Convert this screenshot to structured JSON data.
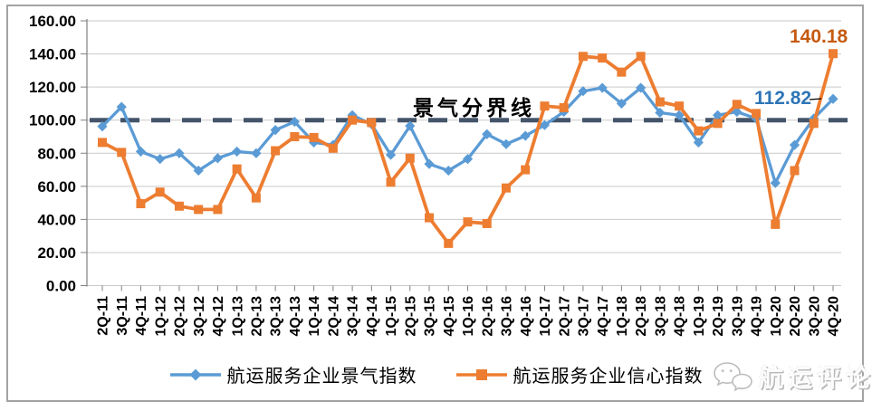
{
  "chart_data": {
    "type": "line",
    "title": "",
    "categories": [
      "2Q-11",
      "3Q-11",
      "4Q-11",
      "1Q-12",
      "2Q-12",
      "3Q-12",
      "4Q-12",
      "1Q-13",
      "2Q-13",
      "3Q-13",
      "4Q-13",
      "1Q-14",
      "2Q-14",
      "3Q-14",
      "4Q-14",
      "1Q-15",
      "2Q-15",
      "3Q-15",
      "4Q-15",
      "1Q-16",
      "2Q-16",
      "3Q-16",
      "4Q-16",
      "1Q-17",
      "2Q-17",
      "3Q-17",
      "4Q-17",
      "1Q-18",
      "2Q-18",
      "3Q-18",
      "4Q-18",
      "1Q-19",
      "2Q-19",
      "3Q-19",
      "4Q-19",
      "1Q-20",
      "2Q-20",
      "3Q-20",
      "4Q-20"
    ],
    "series": [
      {
        "name": "航运服务企业景气指数",
        "color": "#5B9BD5",
        "marker": "diamond",
        "values": [
          96.2,
          108,
          81,
          76.5,
          80,
          69.5,
          77,
          81,
          80,
          94,
          99,
          86.5,
          85,
          103,
          97.5,
          79,
          96.5,
          73.5,
          69.5,
          76.5,
          91.5,
          85.5,
          90.5,
          97,
          105,
          117.5,
          119.5,
          110,
          119.5,
          104.5,
          103,
          86.5,
          103,
          105,
          101,
          62,
          85,
          101,
          112.82
        ]
      },
      {
        "name": "航运服务企业信心指数",
        "color": "#ED7D31",
        "marker": "square",
        "values": [
          86.5,
          80.5,
          49.5,
          56.5,
          48,
          46,
          46,
          70.5,
          53,
          81.5,
          90,
          89.5,
          83,
          100,
          98.5,
          62.5,
          77,
          41,
          25.5,
          38.5,
          37.5,
          59,
          70,
          108.5,
          107.5,
          138.5,
          137.5,
          129,
          138.5,
          111,
          108.5,
          93.5,
          98,
          109.5,
          104,
          37,
          69.5,
          98,
          140.18
        ]
      }
    ],
    "ylim": [
      0,
      160
    ],
    "ytick_step": 20,
    "y_tick_labels": [
      "0.00",
      "20.00",
      "40.00",
      "60.00",
      "80.00",
      "100.00",
      "120.00",
      "140.00",
      "160.00"
    ],
    "grid": true,
    "legend_position": "bottom",
    "reference_line": {
      "value": 100,
      "label": "景气分界线",
      "color": "#44546A",
      "style": "dashed"
    },
    "annotations": [
      {
        "text": "112.82",
        "series": "航运服务企业景气指数",
        "category": "4Q-20",
        "color": "#2E75B6"
      },
      {
        "text": "140.18",
        "series": "航运服务企业信心指数",
        "category": "4Q-20",
        "color": "#C55A11"
      }
    ],
    "colors": {
      "grid": "#C9C9C9",
      "axis": "#808080",
      "frame_border": "#A3A3A3"
    }
  },
  "watermark": {
    "text": "航运评论",
    "icon": "speech-bubbles-icon"
  }
}
